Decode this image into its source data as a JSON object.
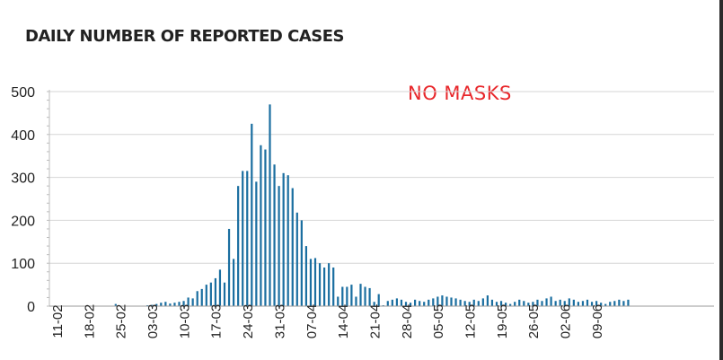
{
  "title": "DAILY NUMBER OF REPORTED CASES",
  "annotation": "NO MASKS",
  "colors": {
    "bar": "#1a6ea0",
    "grid": "#d6d6d6",
    "annotation": "#e8262a",
    "text": "#222222"
  },
  "chart_data": {
    "type": "bar",
    "title": "DAILY NUMBER OF REPORTED CASES",
    "xlabel": "",
    "ylabel": "",
    "ylim": [
      0,
      500
    ],
    "yticks": [
      0,
      100,
      200,
      300,
      400,
      500
    ],
    "grid": true,
    "start_date": "11-02",
    "xtick_labels": [
      "11-02",
      "18-02",
      "25-02",
      "03-03",
      "10-03",
      "17-03",
      "24-03",
      "31-03",
      "07-04",
      "14-04",
      "21-04",
      "28-04",
      "05-05",
      "12-05",
      "19-05",
      "26-05",
      "02-06",
      "09-06"
    ],
    "values": [
      0,
      0,
      0,
      0,
      0,
      0,
      0,
      0,
      0,
      0,
      0,
      0,
      0,
      0,
      5,
      0,
      0,
      0,
      0,
      0,
      0,
      2,
      3,
      5,
      8,
      10,
      6,
      8,
      10,
      12,
      20,
      18,
      35,
      40,
      50,
      55,
      65,
      85,
      55,
      180,
      110,
      280,
      315,
      315,
      425,
      290,
      375,
      365,
      470,
      330,
      280,
      310,
      305,
      275,
      218,
      200,
      140,
      110,
      112,
      100,
      90,
      100,
      90,
      22,
      45,
      45,
      50,
      22,
      52,
      45,
      42,
      10,
      28,
      2,
      12,
      15,
      18,
      15,
      10,
      8,
      15,
      12,
      10,
      15,
      18,
      22,
      25,
      22,
      20,
      18,
      15,
      12,
      10,
      15,
      12,
      18,
      25,
      15,
      10,
      12,
      8,
      5,
      10,
      15,
      12,
      8,
      10,
      15,
      12,
      18,
      22,
      12,
      15,
      12,
      18,
      15,
      10,
      12,
      15,
      10,
      12,
      8,
      5,
      10,
      12,
      15,
      12,
      15
    ]
  }
}
